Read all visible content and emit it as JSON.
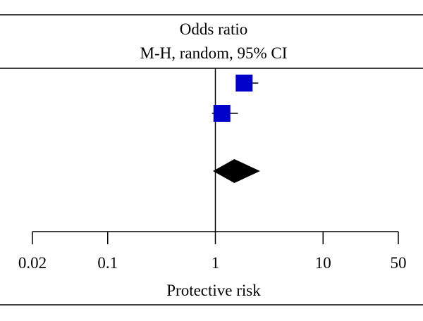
{
  "header": {
    "title": "Odds ratio",
    "subtitle": "M-H, random, 95% CI"
  },
  "chart_data": {
    "type": "forest",
    "effect_measure": "Odds ratio",
    "method": "M-H, random, 95% CI",
    "x_scale": "log",
    "xlim": [
      0.02,
      50
    ],
    "xticks": [
      0.02,
      0.1,
      1,
      10,
      50
    ],
    "xtick_labels": [
      "0.02",
      "0.1",
      "1",
      "10",
      "50"
    ],
    "xlabel": "Protective risk",
    "reference_line": 1,
    "studies": [
      {
        "or": 1.85,
        "ci_low": 1.55,
        "ci_high": 2.5,
        "color": "#0000c8"
      },
      {
        "or": 1.15,
        "ci_low": 0.93,
        "ci_high": 1.62,
        "color": "#0000c8"
      }
    ],
    "pooled": {
      "or": 1.5,
      "ci_low": 0.95,
      "ci_high": 2.6,
      "color": "#000000"
    }
  }
}
